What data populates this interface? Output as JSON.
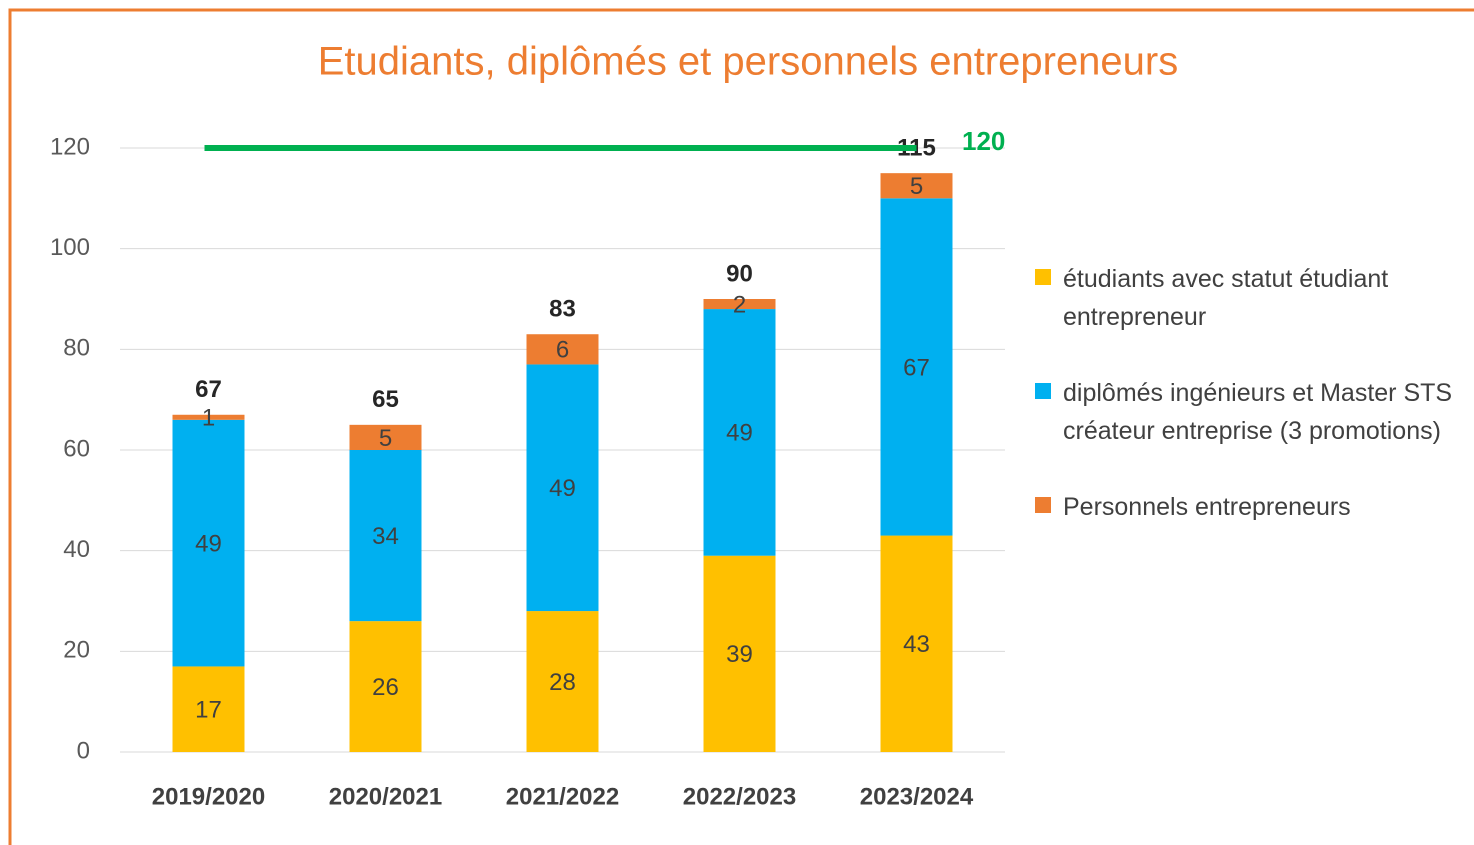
{
  "chart_data": {
    "type": "stacked-bar",
    "title": "Etudiants, diplômés et personnels entrepreneurs",
    "categories": [
      "2019/2020",
      "2020/2021",
      "2021/2022",
      "2022/2023",
      "2023/2024"
    ],
    "series": [
      {
        "name": "étudiants avec statut étudiant entrepreneur",
        "color": "#ffc000",
        "values": [
          17,
          26,
          28,
          39,
          43
        ]
      },
      {
        "name": "diplômés ingénieurs et Master STS créateur entreprise (3 promotions)",
        "color": "#00b0f0",
        "values": [
          49,
          34,
          49,
          49,
          67
        ]
      },
      {
        "name": "Personnels entrepreneurs",
        "color": "#ed7d31",
        "values": [
          1,
          5,
          6,
          2,
          5
        ]
      }
    ],
    "totals": [
      67,
      65,
      83,
      90,
      115
    ],
    "target": 120,
    "target_color": "#00b050",
    "ylim": [
      0,
      120
    ],
    "yticks": [
      0,
      20,
      40,
      60,
      80,
      100,
      120
    ],
    "grid": true,
    "legend": "right"
  }
}
